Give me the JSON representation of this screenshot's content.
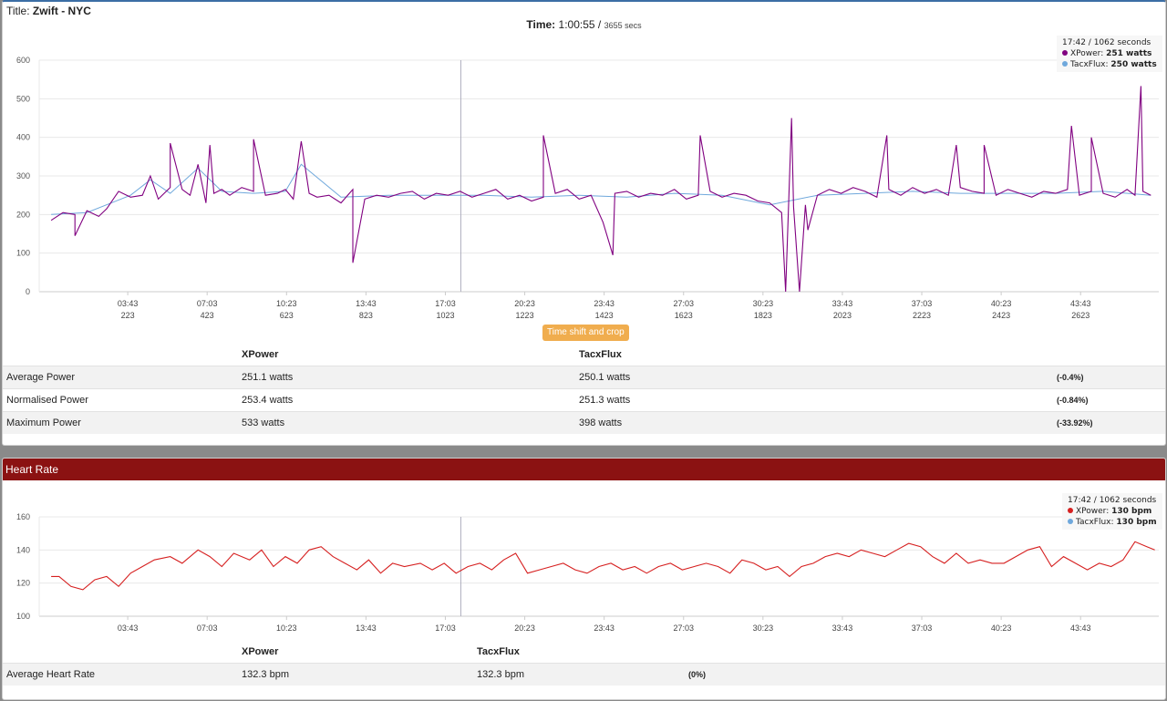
{
  "power": {
    "title_label": "Title:",
    "title_value": "Zwift - NYC",
    "time_label": "Time:",
    "time_value": "1:00:55",
    "time_sep": "/",
    "time_secs": "3655 secs",
    "tooltip": {
      "header": "17:42 / 1062 seconds",
      "rows": [
        {
          "name": "XPower",
          "value": "251 watts",
          "color": "#800080"
        },
        {
          "name": "TacxFlux",
          "value": "250 watts",
          "color": "#6fa8dc"
        }
      ]
    },
    "button_label": "Time shift and crop",
    "table": {
      "headers": [
        "",
        "XPower",
        "TacxFlux",
        ""
      ],
      "rows": [
        {
          "label": "Average Power",
          "a": "251.1 watts",
          "b": "250.1 watts",
          "diff": "(-0.4%)"
        },
        {
          "label": "Normalised Power",
          "a": "253.4 watts",
          "b": "251.3 watts",
          "diff": "(-0.84%)"
        },
        {
          "label": "Maximum Power",
          "a": "533 watts",
          "b": "398 watts",
          "diff": "(-33.92%)"
        }
      ]
    }
  },
  "heart": {
    "header": "Heart Rate",
    "tooltip": {
      "header": "17:42 / 1062 seconds",
      "rows": [
        {
          "name": "XPower",
          "value": "130 bpm",
          "color": "#d62020"
        },
        {
          "name": "TacxFlux",
          "value": "130 bpm",
          "color": "#6fa8dc"
        }
      ]
    },
    "table": {
      "headers": [
        "",
        "XPower",
        "TacxFlux",
        ""
      ],
      "rows": [
        {
          "label": "Average Heart Rate",
          "a": "132.3 bpm",
          "b": "132.3 bpm",
          "diff": "(0%)"
        }
      ]
    }
  },
  "chart_data": [
    {
      "type": "line",
      "title": "",
      "x_unit": "seconds",
      "xlim": [
        0,
        2820
      ],
      "ylim": [
        0,
        600
      ],
      "yticks": [
        0,
        100,
        200,
        300,
        400,
        500,
        600
      ],
      "xticks": [
        {
          "x": 223,
          "time": "03:43",
          "sec": "223"
        },
        {
          "x": 423,
          "time": "07:03",
          "sec": "423"
        },
        {
          "x": 623,
          "time": "10:23",
          "sec": "623"
        },
        {
          "x": 823,
          "time": "13:43",
          "sec": "823"
        },
        {
          "x": 1023,
          "time": "17:03",
          "sec": "1023"
        },
        {
          "x": 1223,
          "time": "20:23",
          "sec": "1223"
        },
        {
          "x": 1423,
          "time": "23:43",
          "sec": "1423"
        },
        {
          "x": 1623,
          "time": "27:03",
          "sec": "1623"
        },
        {
          "x": 1823,
          "time": "30:23",
          "sec": "1823"
        },
        {
          "x": 2023,
          "time": "33:43",
          "sec": "2023"
        },
        {
          "x": 2223,
          "time": "37:03",
          "sec": "2223"
        },
        {
          "x": 2423,
          "time": "40:23",
          "sec": "2423"
        },
        {
          "x": 2623,
          "time": "43:43",
          "sec": "2623"
        }
      ],
      "crosshair_x": 1062,
      "grid": true,
      "legend": "none",
      "series": [
        {
          "name": "XPower",
          "color": "#800080",
          "x": [
            30,
            60,
            90,
            120,
            150,
            170,
            200,
            230,
            260,
            280,
            300,
            330,
            360,
            380,
            400,
            420,
            440,
            460,
            480,
            510,
            540,
            570,
            600,
            620,
            640,
            660,
            680,
            700,
            730,
            760,
            790,
            820,
            850,
            880,
            910,
            940,
            970,
            1000,
            1030,
            1060,
            1090,
            1120,
            1150,
            1180,
            1210,
            1240,
            1270,
            1300,
            1330,
            1360,
            1390,
            1420,
            1450,
            1480,
            1510,
            1540,
            1570,
            1600,
            1630,
            1660,
            1690,
            1720,
            1750,
            1780,
            1810,
            1840,
            1870,
            1900,
            1930,
            1960,
            1990,
            2020,
            2050,
            2080,
            2110,
            2140,
            2170,
            2200,
            2230,
            2260,
            2290,
            2320,
            2350,
            2380,
            2410,
            2440,
            2470,
            2500,
            2530,
            2560,
            2590,
            2620,
            2650,
            2680,
            2710,
            2740,
            2760,
            2780,
            2800
          ],
          "y": [
            185,
            205,
            200,
            210,
            195,
            215,
            260,
            245,
            250,
            300,
            240,
            270,
            265,
            250,
            330,
            230,
            255,
            265,
            250,
            270,
            260,
            250,
            255,
            265,
            240,
            390,
            255,
            245,
            250,
            230,
            265,
            240,
            250,
            245,
            255,
            260,
            240,
            255,
            250,
            260,
            245,
            255,
            265,
            240,
            250,
            235,
            245,
            255,
            265,
            240,
            250,
            180,
            255,
            260,
            245,
            255,
            250,
            265,
            240,
            250,
            260,
            245,
            255,
            250,
            235,
            230,
            205,
            220,
            225,
            250,
            265,
            255,
            270,
            260,
            245,
            265,
            250,
            270,
            255,
            265,
            250,
            270,
            260,
            255,
            250,
            265,
            255,
            245,
            260,
            255,
            265,
            250,
            260,
            255,
            245,
            265,
            250,
            260,
            250
          ]
        },
        {
          "name": "TacxFlux",
          "color": "#6fa8dc",
          "x": [
            30,
            120,
            230,
            280,
            330,
            400,
            460,
            540,
            620,
            660,
            760,
            880,
            1000,
            1120,
            1240,
            1360,
            1480,
            1600,
            1720,
            1840,
            1960,
            2080,
            2200,
            2320,
            2440,
            2560,
            2680,
            2800
          ],
          "y": [
            200,
            205,
            250,
            290,
            255,
            320,
            260,
            255,
            260,
            330,
            245,
            250,
            250,
            250,
            245,
            250,
            245,
            255,
            250,
            225,
            250,
            255,
            260,
            255,
            255,
            255,
            260,
            250
          ]
        }
      ],
      "spikes": [
        {
          "x": 90,
          "y": 145
        },
        {
          "x": 330,
          "y": 385
        },
        {
          "x": 430,
          "y": 380
        },
        {
          "x": 540,
          "y": 395
        },
        {
          "x": 790,
          "y": 75
        },
        {
          "x": 1270,
          "y": 405
        },
        {
          "x": 1445,
          "y": 95
        },
        {
          "x": 1665,
          "y": 405
        },
        {
          "x": 1880,
          "y": 0
        },
        {
          "x": 1895,
          "y": 450
        },
        {
          "x": 1915,
          "y": 0
        },
        {
          "x": 1936,
          "y": 160
        },
        {
          "x": 2135,
          "y": 405
        },
        {
          "x": 2310,
          "y": 380
        },
        {
          "x": 2380,
          "y": 380
        },
        {
          "x": 2600,
          "y": 430
        },
        {
          "x": 2650,
          "y": 400
        },
        {
          "x": 2775,
          "y": 533
        }
      ]
    },
    {
      "type": "line",
      "title": "",
      "x_unit": "seconds",
      "xlim": [
        0,
        2820
      ],
      "ylim": [
        100,
        160
      ],
      "yticks": [
        100,
        120,
        140,
        160
      ],
      "xticks": [
        {
          "x": 223,
          "time": "03:43"
        },
        {
          "x": 423,
          "time": "07:03"
        },
        {
          "x": 623,
          "time": "10:23"
        },
        {
          "x": 823,
          "time": "13:43"
        },
        {
          "x": 1023,
          "time": "17:03"
        },
        {
          "x": 1223,
          "time": "20:23"
        },
        {
          "x": 1423,
          "time": "23:43"
        },
        {
          "x": 1623,
          "time": "27:03"
        },
        {
          "x": 1823,
          "time": "30:23"
        },
        {
          "x": 2023,
          "time": "33:43"
        },
        {
          "x": 2223,
          "time": "37:03"
        },
        {
          "x": 2423,
          "time": "40:23"
        },
        {
          "x": 2623,
          "time": "43:43"
        }
      ],
      "crosshair_x": 1062,
      "grid": true,
      "legend": "none",
      "series": [
        {
          "name": "XPower",
          "color": "#d62020",
          "x": [
            30,
            50,
            80,
            110,
            140,
            170,
            200,
            230,
            260,
            290,
            330,
            360,
            400,
            430,
            460,
            490,
            530,
            560,
            590,
            620,
            650,
            680,
            710,
            740,
            770,
            800,
            830,
            860,
            890,
            920,
            960,
            990,
            1020,
            1050,
            1080,
            1110,
            1140,
            1170,
            1200,
            1230,
            1260,
            1290,
            1320,
            1350,
            1380,
            1410,
            1440,
            1470,
            1500,
            1530,
            1560,
            1590,
            1620,
            1650,
            1680,
            1710,
            1740,
            1770,
            1800,
            1830,
            1860,
            1890,
            1920,
            1950,
            1980,
            2010,
            2040,
            2070,
            2100,
            2130,
            2160,
            2190,
            2220,
            2250,
            2280,
            2310,
            2340,
            2370,
            2400,
            2430,
            2460,
            2490,
            2520,
            2550,
            2580,
            2610,
            2640,
            2670,
            2700,
            2730,
            2760,
            2790,
            2810
          ],
          "y": [
            124,
            124,
            118,
            116,
            122,
            124,
            118,
            126,
            130,
            134,
            136,
            132,
            140,
            136,
            130,
            138,
            134,
            140,
            130,
            136,
            132,
            140,
            142,
            136,
            132,
            128,
            134,
            126,
            132,
            130,
            132,
            128,
            132,
            126,
            130,
            132,
            128,
            134,
            138,
            126,
            128,
            130,
            132,
            128,
            126,
            130,
            132,
            128,
            130,
            126,
            130,
            132,
            128,
            130,
            132,
            130,
            126,
            134,
            132,
            128,
            130,
            124,
            130,
            132,
            136,
            138,
            136,
            140,
            138,
            136,
            140,
            144,
            142,
            136,
            132,
            138,
            132,
            134,
            132,
            132,
            136,
            140,
            142,
            130,
            136,
            132,
            128,
            132,
            130,
            134,
            145,
            142,
            140
          ]
        }
      ]
    }
  ]
}
